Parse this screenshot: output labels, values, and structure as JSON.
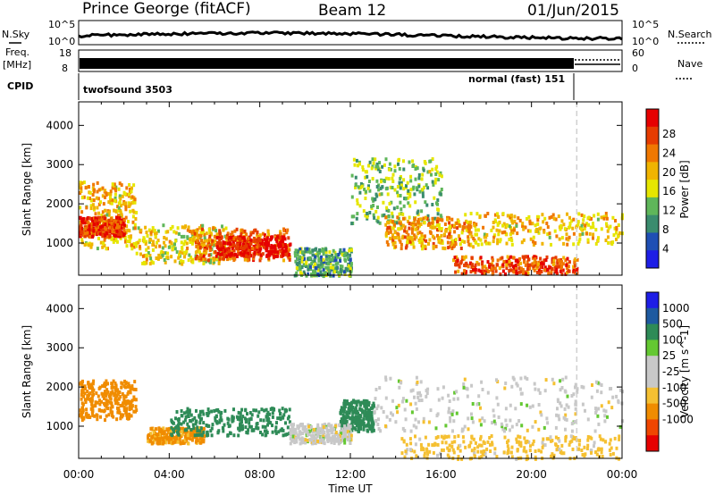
{
  "header": {
    "title": "Prince George (fitACF)",
    "beam": "Beam 12",
    "date": "01/Jun/2015"
  },
  "noise_panel": {
    "left_label": "N.Sky",
    "left_ticks": [
      "10^5",
      "10^0"
    ],
    "right_label": "N.Search",
    "right_ticks": [
      "10^5",
      "10^0"
    ]
  },
  "freq_panel": {
    "left_label_line1": "Freq.",
    "left_label_line2": "[MHz]",
    "left_ticks": [
      "18",
      "8"
    ],
    "right_label": "Nave",
    "right_ticks": [
      "60",
      "0"
    ]
  },
  "cpid_panel": {
    "label": "CPID",
    "modes": [
      {
        "name": "twofsound 3503",
        "start_hour": 0,
        "end_hour": 22
      },
      {
        "name": "normal (fast) 151",
        "start_hour": 22,
        "end_hour": 24
      }
    ]
  },
  "colors": {
    "power_scale": [
      "#1e1ee6",
      "#1f4fb4",
      "#3a8c6e",
      "#5fb65a",
      "#e6e600",
      "#f0b400",
      "#f07800",
      "#e63c00",
      "#e60000"
    ],
    "velocity_scale": [
      "#e60000",
      "#f04600",
      "#f08c00",
      "#f5c032",
      "#c8c8c8",
      "#c8c8c8",
      "#64c832",
      "#2e8b57",
      "#1e5aa0",
      "#1e1ee6"
    ]
  },
  "chart_data": [
    {
      "type": "heatmap",
      "panel": "power",
      "ylabel": "Slant Range [km]",
      "xlabel": "Time UT",
      "xlim": [
        0,
        24
      ],
      "ylim": [
        180,
        4600
      ],
      "yticks": [
        "1000",
        "2000",
        "3000",
        "4000"
      ],
      "xticks": [
        "00:00",
        "04:00",
        "08:00",
        "12:00",
        "16:00",
        "20:00",
        "00:00"
      ],
      "colorbar_label": "Power [dB]",
      "colorbar_ticks": [
        "4",
        "8",
        "12",
        "16",
        "20",
        "24",
        "28"
      ],
      "colorbar_range": [
        0,
        30
      ],
      "echo_regions": [
        {
          "t_start": 0.0,
          "t_end": 2.5,
          "r_low": 900,
          "r_high": 2600,
          "power": 18
        },
        {
          "t_start": 0.0,
          "t_end": 2.0,
          "r_low": 1200,
          "r_high": 1700,
          "power": 26
        },
        {
          "t_start": 2.5,
          "t_end": 6.5,
          "r_low": 500,
          "r_high": 1500,
          "power": 16
        },
        {
          "t_start": 5.0,
          "t_end": 9.3,
          "r_low": 600,
          "r_high": 1400,
          "power": 22
        },
        {
          "t_start": 6.0,
          "t_end": 9.3,
          "r_low": 700,
          "r_high": 1200,
          "power": 28
        },
        {
          "t_start": 9.5,
          "t_end": 12.0,
          "r_low": 200,
          "r_high": 900,
          "power": 10
        },
        {
          "t_start": 12.0,
          "t_end": 16.0,
          "r_low": 1500,
          "r_high": 3200,
          "power": 12
        },
        {
          "t_start": 13.5,
          "t_end": 17.5,
          "r_low": 900,
          "r_high": 1700,
          "power": 20
        },
        {
          "t_start": 17.0,
          "t_end": 24.0,
          "r_low": 1000,
          "r_high": 1800,
          "power": 18
        },
        {
          "t_start": 16.5,
          "t_end": 22.0,
          "r_low": 250,
          "r_high": 700,
          "power": 24
        }
      ]
    },
    {
      "type": "heatmap",
      "panel": "velocity",
      "ylabel": "Slant Range [km]",
      "xlabel": "Time UT",
      "xlim": [
        0,
        24
      ],
      "ylim": [
        180,
        4600
      ],
      "yticks": [
        "1000",
        "2000",
        "3000",
        "4000"
      ],
      "xticks": [
        "00:00",
        "04:00",
        "08:00",
        "12:00",
        "16:00",
        "20:00",
        "00:00"
      ],
      "colorbar_label": "Velocity [m s^-1]",
      "colorbar_ticks": [
        "1000",
        "500",
        "100",
        "25",
        "-25",
        "-100",
        "-500",
        "-1000"
      ],
      "echo_regions": [
        {
          "t_start": 0.0,
          "t_end": 2.5,
          "r_low": 1200,
          "r_high": 2200,
          "velocity": -200
        },
        {
          "t_start": 3.0,
          "t_end": 5.5,
          "r_low": 600,
          "r_high": 1000,
          "velocity": -120
        },
        {
          "t_start": 4.0,
          "t_end": 9.3,
          "r_low": 800,
          "r_high": 1500,
          "velocity": 150
        },
        {
          "t_start": 11.5,
          "t_end": 13.0,
          "r_low": 900,
          "r_high": 1700,
          "velocity": 180
        },
        {
          "t_start": 13.0,
          "t_end": 24.0,
          "r_low": 900,
          "r_high": 2300,
          "velocity": 0
        },
        {
          "t_start": 9.3,
          "t_end": 12.0,
          "r_low": 600,
          "r_high": 1100,
          "velocity": 0
        },
        {
          "t_start": 14.0,
          "t_end": 24.0,
          "r_low": 200,
          "r_high": 800,
          "velocity": -50
        }
      ]
    }
  ]
}
